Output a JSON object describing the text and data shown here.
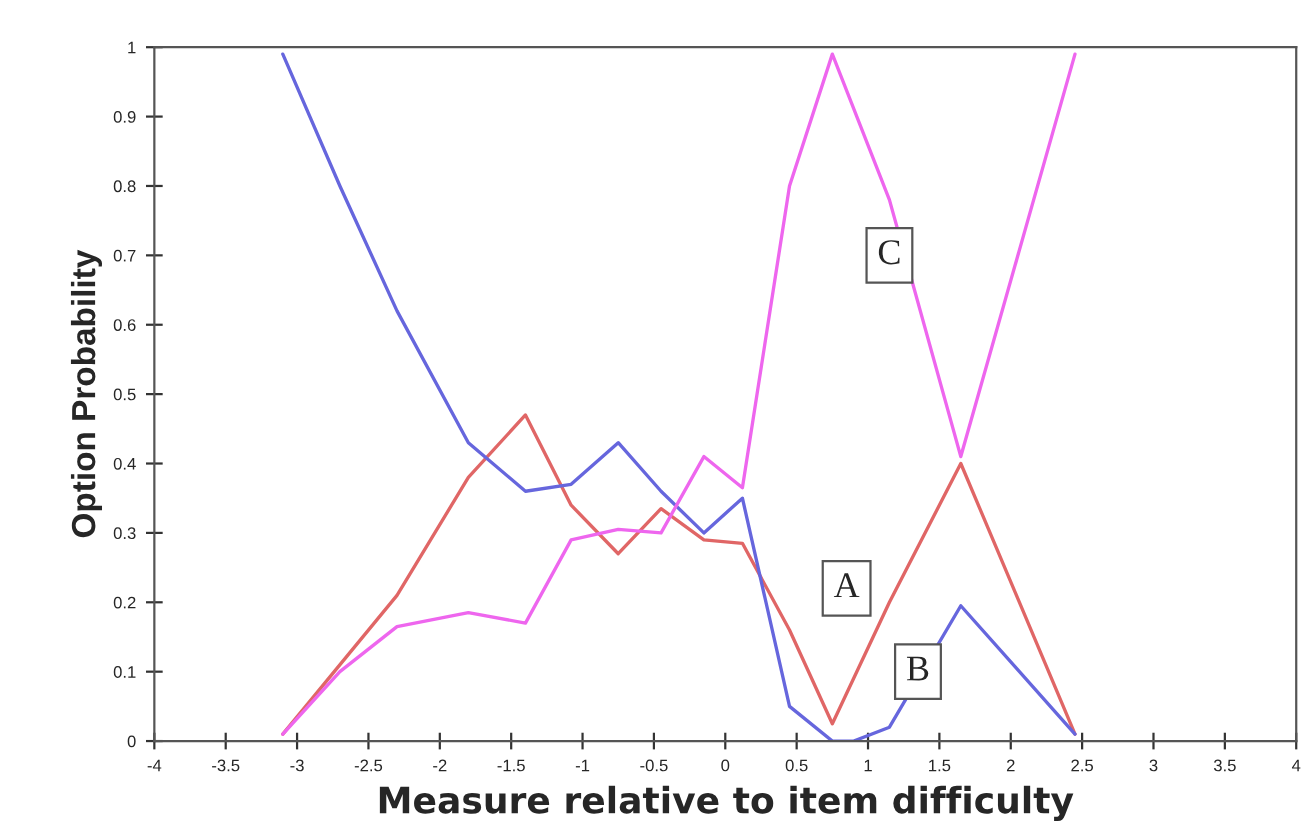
{
  "chart_data": {
    "type": "line",
    "xlabel": "Measure relative to item difficulty",
    "ylabel": "Option Probability",
    "xlim": [
      -4,
      4
    ],
    "xticks": [
      -4,
      -3.5,
      -3,
      -2.5,
      -2,
      -1.5,
      -1,
      -0.5,
      0,
      0.5,
      1,
      1.5,
      2,
      2.5,
      3,
      3.5,
      4
    ],
    "ylim": [
      0,
      1
    ],
    "yticks": [
      0,
      0.1,
      0.2,
      0.3,
      0.4,
      0.5,
      0.6,
      0.7,
      0.8,
      0.9,
      1
    ],
    "grid": false,
    "legend": false,
    "marker": "none",
    "line_style": "solid",
    "series": [
      {
        "name": "A",
        "color": "#e06666",
        "x": [
          -3.1,
          -2.3,
          -1.8,
          -1.4,
          -1.08,
          -0.75,
          -0.45,
          -0.15,
          0.12,
          0.45,
          0.75,
          1.15,
          1.65,
          2.45
        ],
        "values": [
          0.01,
          0.21,
          0.38,
          0.47,
          0.34,
          0.27,
          0.335,
          0.29,
          0.285,
          0.16,
          0.025,
          0.2,
          0.4,
          0.01
        ]
      },
      {
        "name": "B",
        "color": "#6666dd",
        "x": [
          -3.1,
          -2.7,
          -2.3,
          -1.8,
          -1.4,
          -1.08,
          -0.75,
          -0.45,
          -0.15,
          0.12,
          0.45,
          0.75,
          0.9,
          1.15,
          1.65,
          2.45
        ],
        "values": [
          0.99,
          0.8,
          0.62,
          0.43,
          0.36,
          0.37,
          0.43,
          0.36,
          0.3,
          0.35,
          0.05,
          0.0,
          0.0,
          0.02,
          0.195,
          0.01
        ]
      },
      {
        "name": "C",
        "color": "#ee66ee",
        "x": [
          -3.1,
          -2.7,
          -2.3,
          -1.8,
          -1.4,
          -1.08,
          -0.75,
          -0.45,
          -0.15,
          0.12,
          0.45,
          0.75,
          1.15,
          1.65,
          2.45
        ],
        "values": [
          0.01,
          0.1,
          0.165,
          0.185,
          0.17,
          0.29,
          0.305,
          0.3,
          0.41,
          0.365,
          0.8,
          0.99,
          0.78,
          0.41,
          0.99
        ]
      }
    ]
  }
}
